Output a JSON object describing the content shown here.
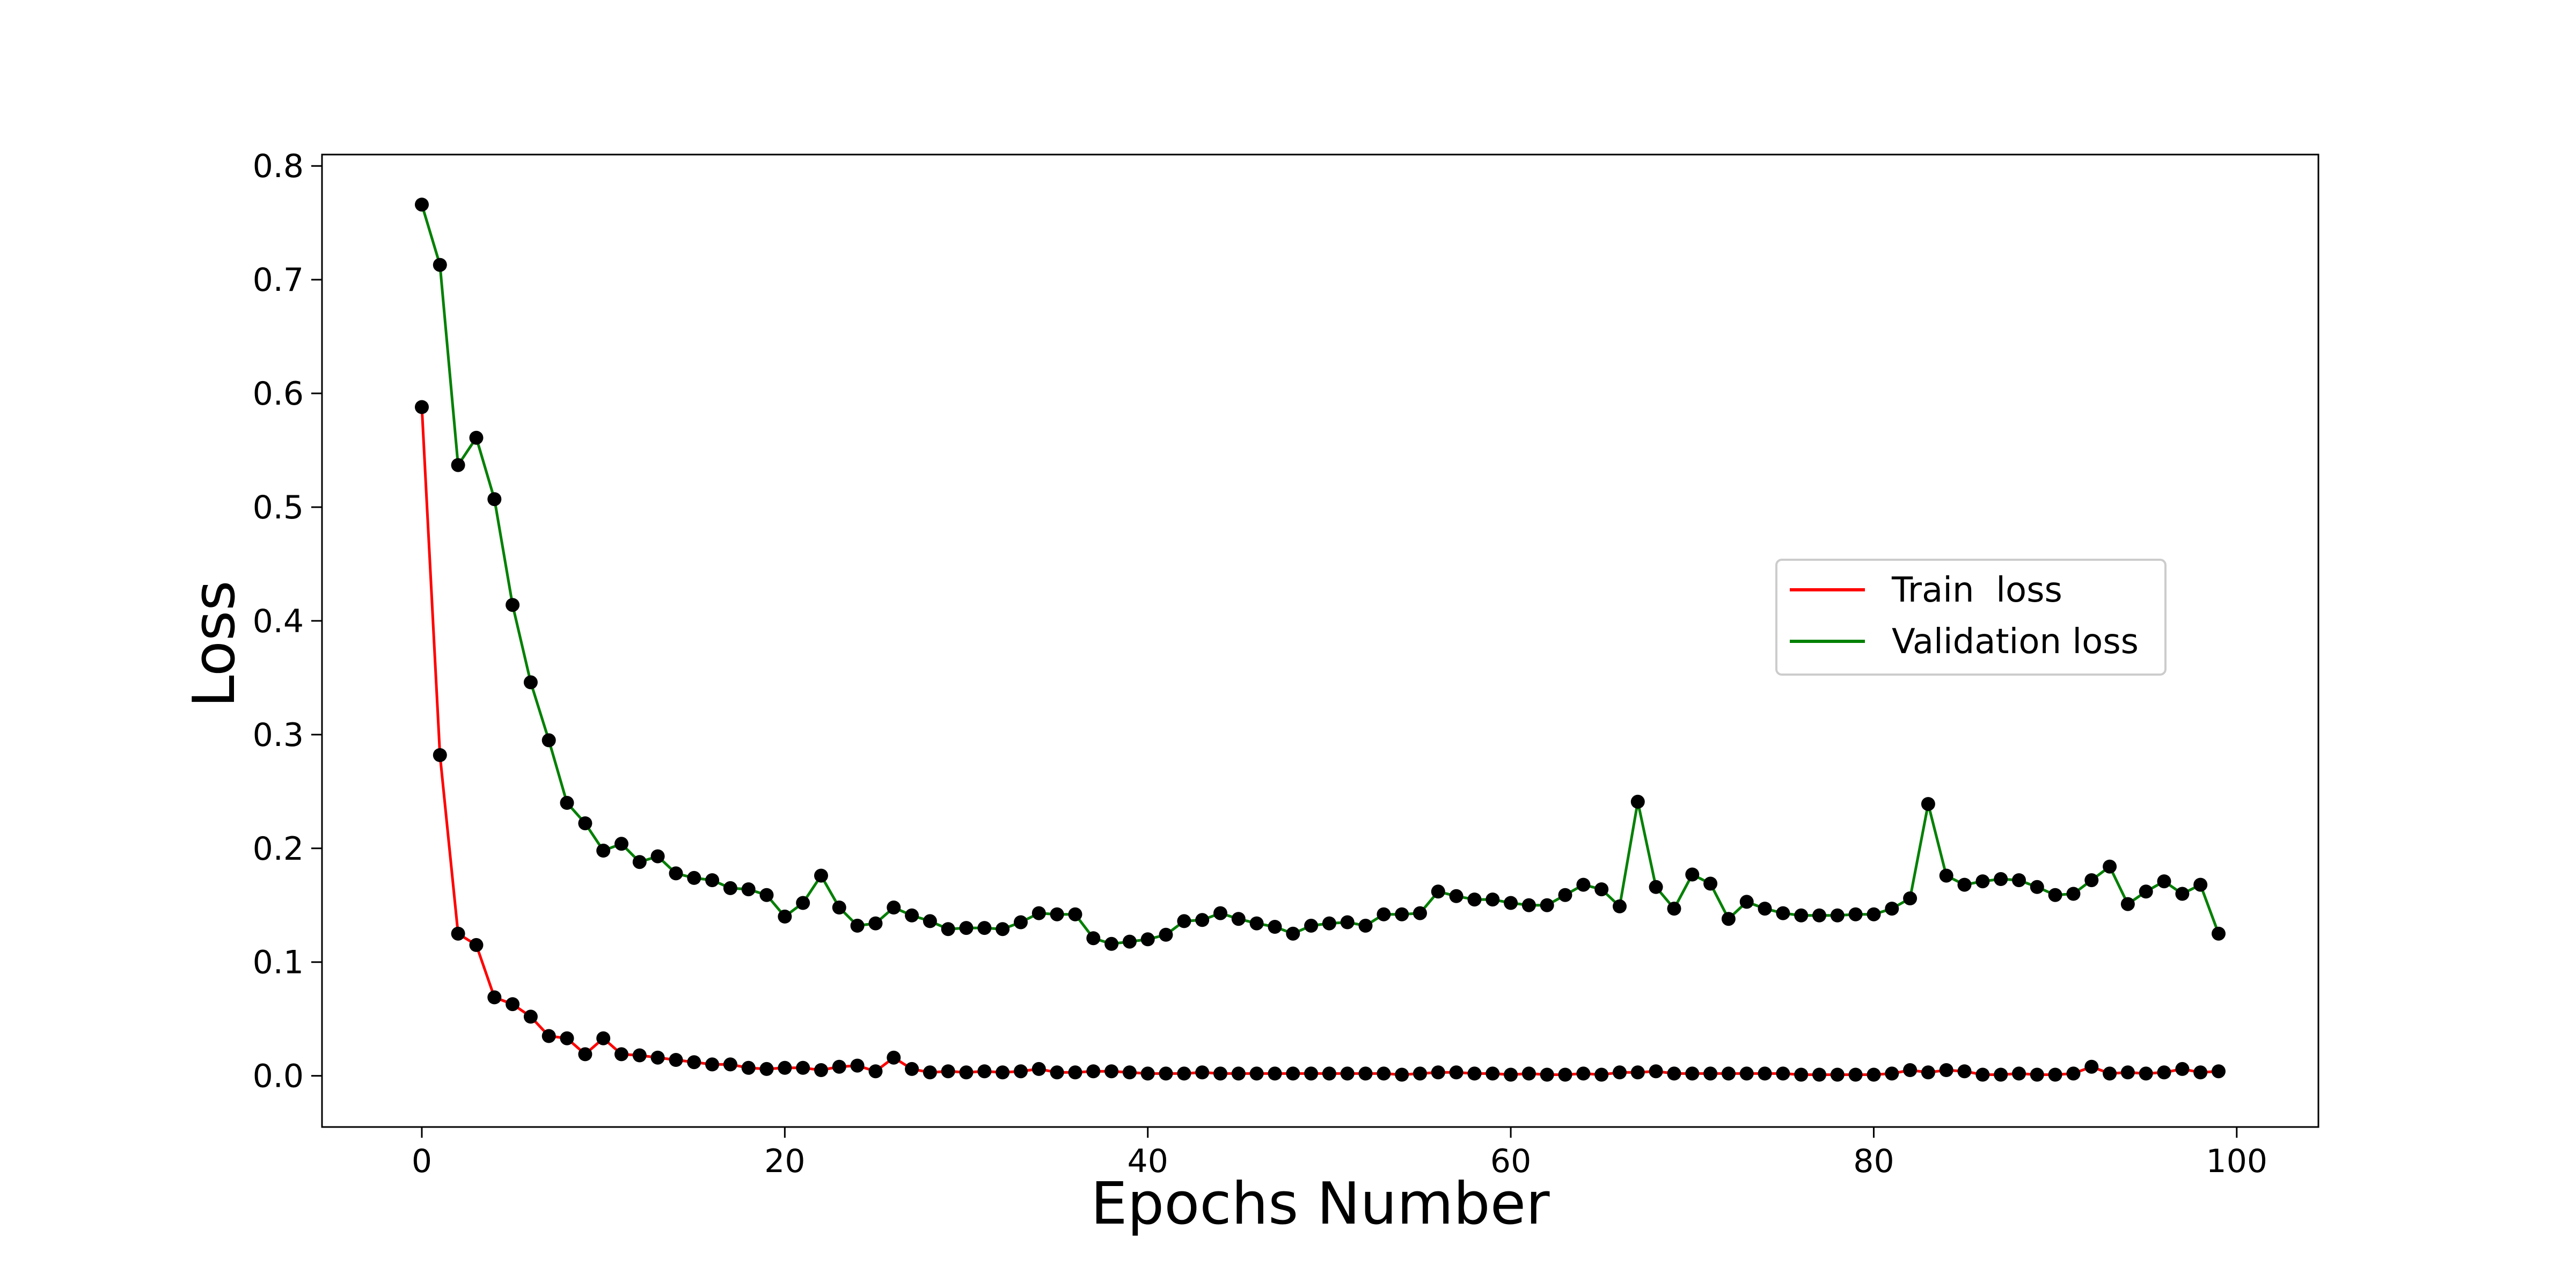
{
  "chart_data": {
    "type": "line",
    "title": "",
    "xlabel": "Epochs Number",
    "ylabel": "Loss",
    "xlim": [
      -5.5,
      104.5
    ],
    "ylim": [
      -0.045,
      0.81
    ],
    "xticks": [
      0,
      20,
      40,
      60,
      80,
      100
    ],
    "yticks": [
      0.0,
      0.1,
      0.2,
      0.3,
      0.4,
      0.5,
      0.6,
      0.7,
      0.8
    ],
    "xtick_labels": [
      "0",
      "20",
      "40",
      "60",
      "80",
      "100"
    ],
    "ytick_labels": [
      "0.0",
      "0.1",
      "0.2",
      "0.3",
      "0.4",
      "0.5",
      "0.6",
      "0.7",
      "0.8"
    ],
    "grid": false,
    "legend": {
      "position": "center-right"
    },
    "marker_color": "#000000",
    "series": [
      {
        "name": "Train  loss",
        "color": "#ff0000",
        "values": [
          0.588,
          0.282,
          0.125,
          0.115,
          0.069,
          0.063,
          0.052,
          0.035,
          0.033,
          0.019,
          0.033,
          0.019,
          0.018,
          0.016,
          0.014,
          0.012,
          0.01,
          0.01,
          0.007,
          0.006,
          0.007,
          0.007,
          0.005,
          0.008,
          0.009,
          0.004,
          0.016,
          0.006,
          0.003,
          0.004,
          0.003,
          0.004,
          0.003,
          0.004,
          0.006,
          0.003,
          0.003,
          0.004,
          0.004,
          0.003,
          0.002,
          0.002,
          0.002,
          0.003,
          0.002,
          0.002,
          0.002,
          0.002,
          0.002,
          0.002,
          0.002,
          0.002,
          0.002,
          0.002,
          0.001,
          0.002,
          0.003,
          0.003,
          0.002,
          0.002,
          0.001,
          0.002,
          0.001,
          0.001,
          0.002,
          0.001,
          0.003,
          0.003,
          0.004,
          0.002,
          0.002,
          0.002,
          0.002,
          0.002,
          0.002,
          0.002,
          0.001,
          0.001,
          0.001,
          0.001,
          0.001,
          0.002,
          0.005,
          0.003,
          0.005,
          0.004,
          0.001,
          0.001,
          0.002,
          0.001,
          0.001,
          0.002,
          0.008,
          0.002,
          0.003,
          0.002,
          0.003,
          0.006,
          0.003,
          0.004
        ]
      },
      {
        "name": "Validation loss",
        "color": "#008000",
        "values": [
          0.766,
          0.713,
          0.537,
          0.561,
          0.507,
          0.414,
          0.346,
          0.295,
          0.24,
          0.222,
          0.198,
          0.204,
          0.188,
          0.193,
          0.178,
          0.174,
          0.172,
          0.165,
          0.164,
          0.159,
          0.14,
          0.152,
          0.176,
          0.148,
          0.132,
          0.134,
          0.148,
          0.141,
          0.136,
          0.129,
          0.13,
          0.13,
          0.129,
          0.135,
          0.143,
          0.142,
          0.142,
          0.121,
          0.116,
          0.118,
          0.12,
          0.124,
          0.136,
          0.137,
          0.143,
          0.138,
          0.134,
          0.131,
          0.125,
          0.132,
          0.134,
          0.135,
          0.132,
          0.142,
          0.142,
          0.143,
          0.162,
          0.158,
          0.155,
          0.155,
          0.152,
          0.15,
          0.15,
          0.159,
          0.168,
          0.164,
          0.149,
          0.241,
          0.166,
          0.147,
          0.177,
          0.169,
          0.138,
          0.153,
          0.147,
          0.143,
          0.141,
          0.141,
          0.141,
          0.142,
          0.142,
          0.147,
          0.156,
          0.239,
          0.176,
          0.168,
          0.171,
          0.173,
          0.172,
          0.166,
          0.159,
          0.16,
          0.172,
          0.184,
          0.151,
          0.162,
          0.171,
          0.16,
          0.168,
          0.125
        ]
      }
    ]
  }
}
